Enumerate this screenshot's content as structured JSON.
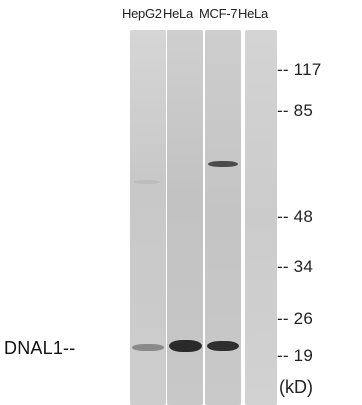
{
  "lanes": [
    "HepG2",
    "HeLa",
    "MCF-7",
    "HeLa"
  ],
  "markers": [
    {
      "dash": "--",
      "value": "117"
    },
    {
      "dash": "--",
      "value": "85"
    },
    {
      "dash": "--",
      "value": "48"
    },
    {
      "dash": "--",
      "value": "34"
    },
    {
      "dash": "--",
      "value": "26"
    },
    {
      "dash": "--",
      "value": "19"
    }
  ],
  "target_label": "DNAL1--",
  "units": "(kD)"
}
